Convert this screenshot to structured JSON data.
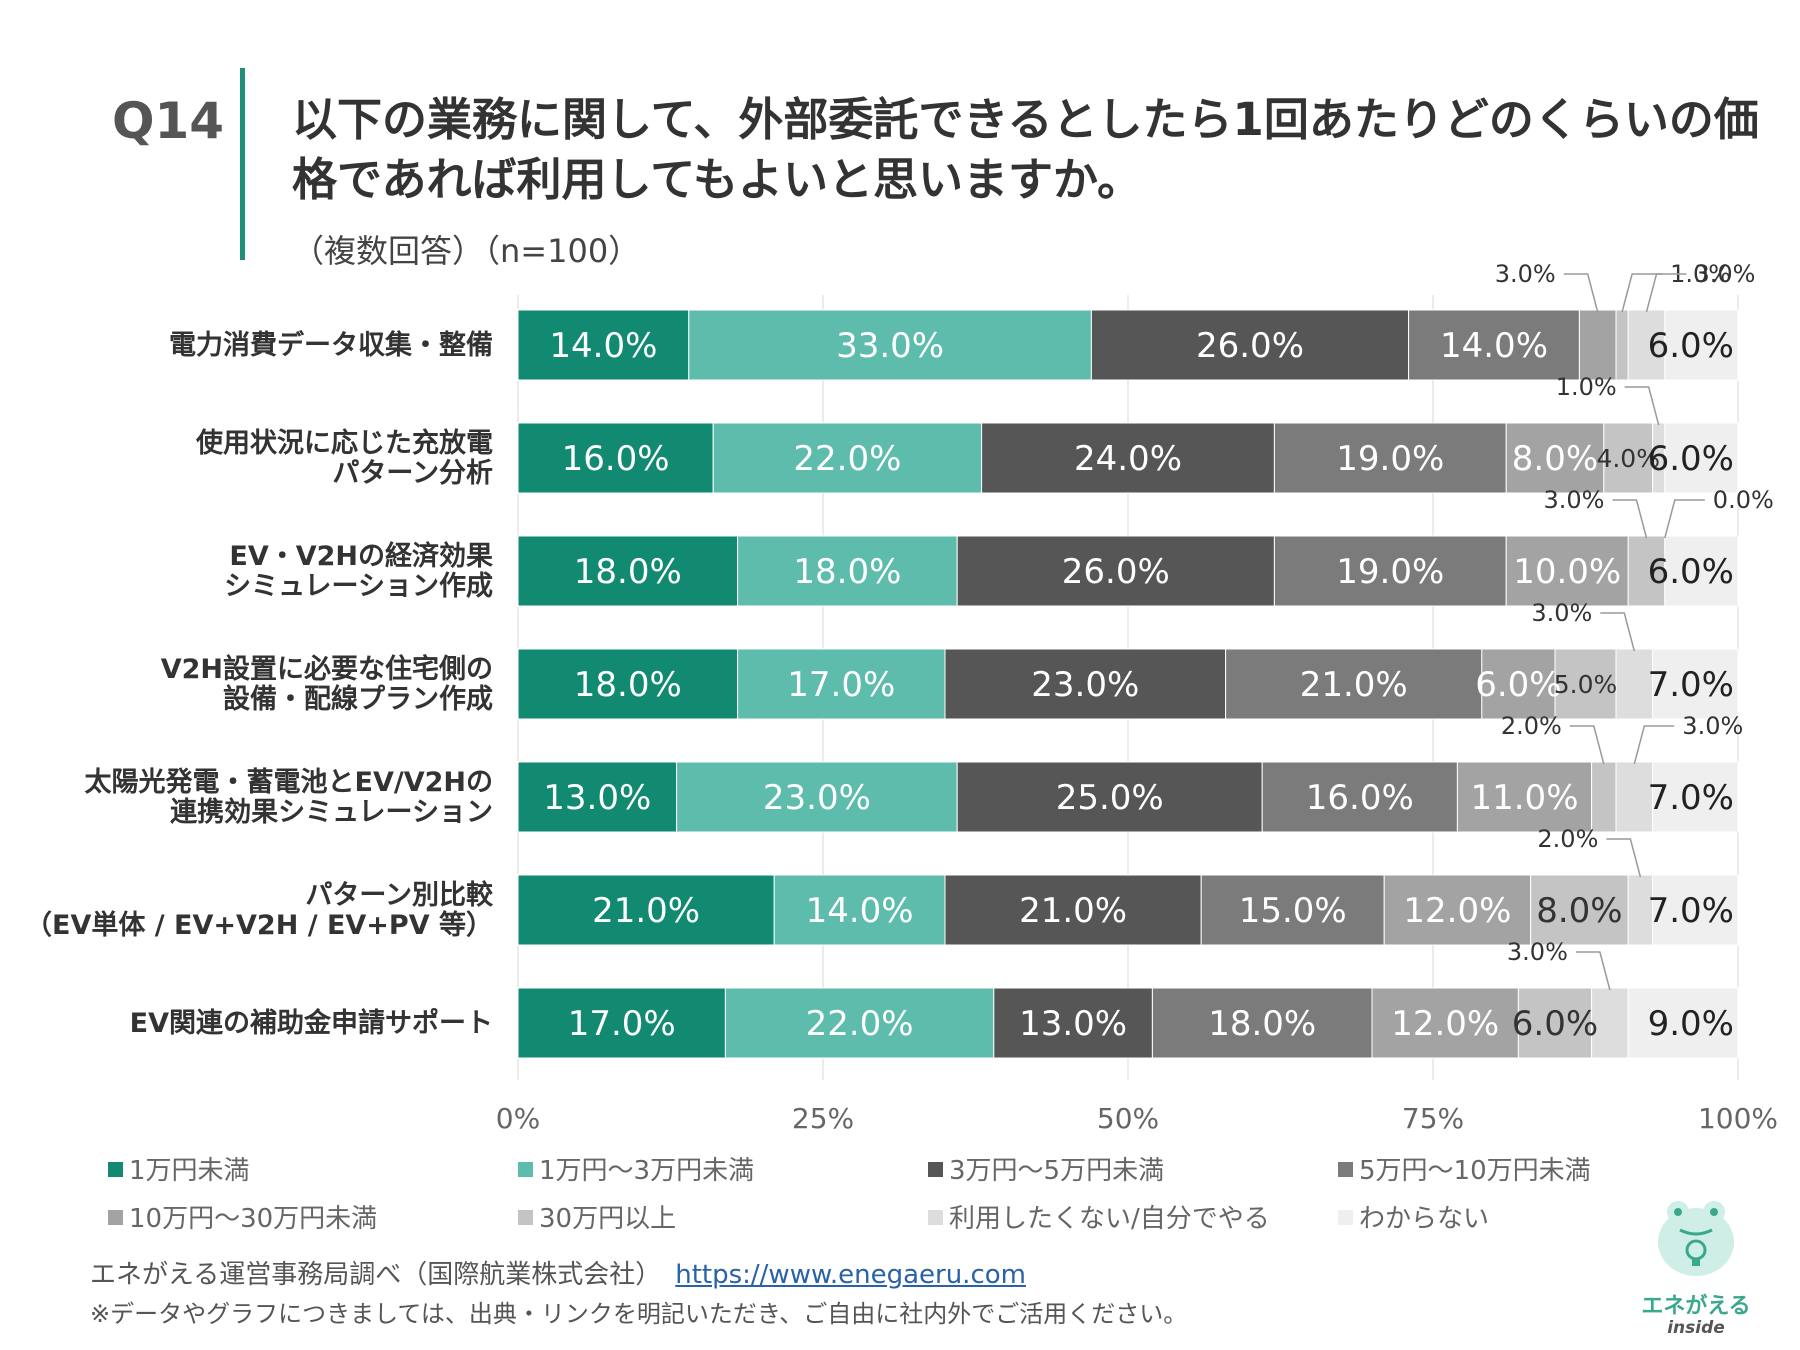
{
  "header": {
    "q_label": "Q14",
    "title": "以下の業務に関して、外部委託できるとしたら1回あたりどのくらいの価格であれば利用してもよいと思いますか。",
    "subtitle": "（複数回答）（n=100）"
  },
  "chart_data": {
    "type": "bar",
    "orientation": "horizontal",
    "stacked": "100%",
    "xlim": [
      0,
      100
    ],
    "x_ticks": [
      "0%",
      "25%",
      "50%",
      "75%",
      "100%"
    ],
    "categories": [
      [
        "電力消費データ収集・整備"
      ],
      [
        "使用状況に応じた充放電",
        "パターン分析"
      ],
      [
        "EV・V2Hの経済効果",
        "シミュレーション作成"
      ],
      [
        "V2H設置に必要な住宅側の",
        "設備・配線プラン作成"
      ],
      [
        "太陽光発電・蓄電池とEV/V2Hの",
        "連携効果シミュレーション"
      ],
      [
        "パターン別比較",
        "（EV単体 / EV+V2H / EV+PV 等）"
      ],
      [
        "EV関連の補助金申請サポート"
      ]
    ],
    "series": [
      {
        "name": "1万円未満",
        "color": "#128a72",
        "values": [
          14.0,
          16.0,
          18.0,
          18.0,
          13.0,
          21.0,
          17.0
        ]
      },
      {
        "name": "1万円〜3万円未満",
        "color": "#5dbcac",
        "values": [
          33.0,
          22.0,
          18.0,
          17.0,
          23.0,
          14.0,
          22.0
        ]
      },
      {
        "name": "3万円〜5万円未満",
        "color": "#565656",
        "values": [
          26.0,
          24.0,
          26.0,
          23.0,
          25.0,
          21.0,
          13.0
        ]
      },
      {
        "name": "5万円〜10万円未満",
        "color": "#7b7b7b",
        "values": [
          14.0,
          19.0,
          19.0,
          21.0,
          16.0,
          15.0,
          18.0
        ]
      },
      {
        "name": "10万円〜30万円未満",
        "color": "#a3a3a3",
        "values": [
          3.0,
          8.0,
          10.0,
          6.0,
          11.0,
          12.0,
          12.0
        ]
      },
      {
        "name": "30万円以上",
        "color": "#c4c4c4",
        "values": [
          1.0,
          4.0,
          3.0,
          5.0,
          2.0,
          8.0,
          6.0
        ]
      },
      {
        "name": "利用したくない/自分でやる",
        "color": "#dddddd",
        "values": [
          3.0,
          1.0,
          0.0,
          3.0,
          3.0,
          2.0,
          3.0
        ]
      },
      {
        "name": "わからない",
        "color": "#efefef",
        "values": [
          6.0,
          6.0,
          6.0,
          7.0,
          7.0,
          7.0,
          9.0
        ]
      }
    ],
    "data_labels": [
      [
        "14.0%",
        "33.0%",
        "26.0%",
        "14.0%",
        "3.0%",
        "1.0%",
        "3.0%",
        "6.0%"
      ],
      [
        "16.0%",
        "22.0%",
        "24.0%",
        "19.0%",
        "8.0%",
        "4.0%",
        "1.0%",
        "6.0%"
      ],
      [
        "18.0%",
        "18.0%",
        "26.0%",
        "19.0%",
        "10.0%",
        "3.0%",
        "0.0%",
        "6.0%"
      ],
      [
        "18.0%",
        "17.0%",
        "23.0%",
        "21.0%",
        "6.0%",
        "5.0%",
        "3.0%",
        "7.0%"
      ],
      [
        "13.0%",
        "23.0%",
        "25.0%",
        "16.0%",
        "11.0%",
        "2.0%",
        "3.0%",
        "7.0%"
      ],
      [
        "21.0%",
        "14.0%",
        "21.0%",
        "15.0%",
        "12.0%",
        "8.0%",
        "2.0%",
        "7.0%"
      ],
      [
        "17.0%",
        "22.0%",
        "13.0%",
        "18.0%",
        "12.0%",
        "6.0%",
        "3.0%",
        "9.0%"
      ]
    ],
    "legend_position": "bottom"
  },
  "footer": {
    "source": "エネがえる運営事務局調べ（国際航業株式会社）",
    "link": "https://www.enegaeru.com",
    "note": "※データやグラフにつきましては、出典・リンクを明記いただき、ご自由に社内外でご活用ください。"
  },
  "logo": {
    "text": "エネがえる",
    "sub": "inside"
  }
}
